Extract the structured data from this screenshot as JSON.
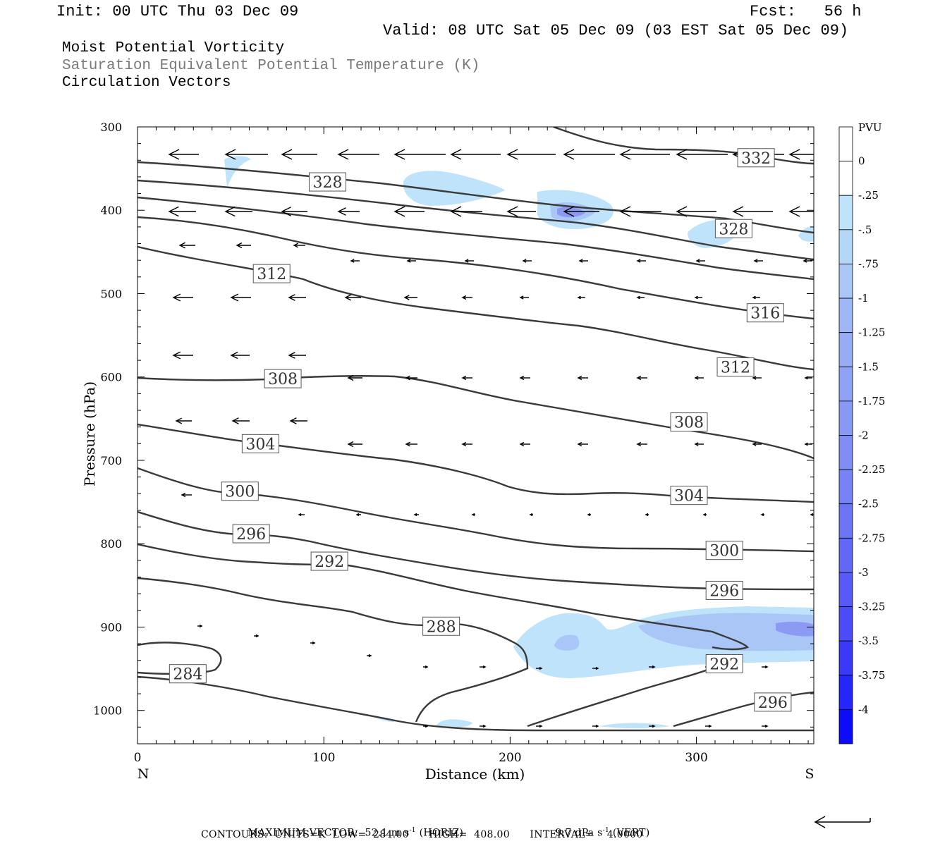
{
  "header": {
    "init": "Init: 00 UTC Thu 03 Dec 09",
    "fcst": "Fcst:   56 h",
    "valid": "Valid: 08 UTC Sat 05 Dec 09 (03 EST Sat 05 Dec 09)"
  },
  "titles": [
    "Moist Potential Vorticity",
    "Saturation Equivalent Potential Temperature (K)",
    "Circulation Vectors"
  ],
  "footer": {
    "max_vector_label": "MAXIMUM VECTOR:",
    "max_horiz": "52.1 m s",
    "horiz_tag": "(HORIZ)",
    "max_vert": "9.7 dPa s",
    "vert_tag": "(VERT)",
    "exp": "-1",
    "contours": "CONTOURS:  UNITS=K  LOW=  284.00      HIGH=  408.00      INTERVAL=    4.0000"
  },
  "colors": {
    "contour": "#3a3a3a",
    "pv_light": "#bfe3fa",
    "pv_mid": "#a9c6f7",
    "pv_dark": "#8c9af3"
  },
  "chart_data": {
    "type": "cross-section",
    "xlabel": "Distance (km)",
    "ylabel": "Pressure (hPa)",
    "xlim": [
      0,
      363
    ],
    "ylim": [
      1040,
      300
    ],
    "x_ticks": [
      0,
      100,
      200,
      300
    ],
    "y_ticks": [
      300,
      400,
      500,
      600,
      700,
      800,
      900,
      1000
    ],
    "x_end_labels": {
      "left": "N",
      "right": "S"
    },
    "colorbar": {
      "title": "PVU",
      "levels": [
        "0",
        "-.25",
        "-.5",
        "-.75",
        "-1",
        "-1.25",
        "-1.5",
        "-1.75",
        "-2",
        "-2.25",
        "-2.5",
        "-2.75",
        "-3",
        "-3.25",
        "-3.5",
        "-3.75",
        "-4"
      ],
      "colors": [
        "#ffffff",
        "#ffffff",
        "#bfe3fa",
        "#b4d7f8",
        "#a9c6f7",
        "#9fb7f7",
        "#98acf6",
        "#90a2f5",
        "#8898f5",
        "#7f8df5",
        "#7682f5",
        "#6c75f5",
        "#6268f6",
        "#575af6",
        "#4b4bf7",
        "#3a39f8",
        "#2526f9",
        "#0c0cfb"
      ]
    },
    "contour_labels": [
      {
        "value": "332",
        "x": 332,
        "p": 337
      },
      {
        "value": "328",
        "x": 102,
        "p": 366
      },
      {
        "value": "328",
        "x": 320,
        "p": 422
      },
      {
        "value": "312",
        "x": 72,
        "p": 476
      },
      {
        "value": "316",
        "x": 337,
        "p": 523
      },
      {
        "value": "312",
        "x": 321,
        "p": 588
      },
      {
        "value": "308",
        "x": 78,
        "p": 602
      },
      {
        "value": "308",
        "x": 296,
        "p": 654
      },
      {
        "value": "304",
        "x": 66,
        "p": 680
      },
      {
        "value": "304",
        "x": 296,
        "p": 742
      },
      {
        "value": "300",
        "x": 55,
        "p": 737
      },
      {
        "value": "300",
        "x": 315,
        "p": 808
      },
      {
        "value": "296",
        "x": 61,
        "p": 788
      },
      {
        "value": "296",
        "x": 315,
        "p": 856
      },
      {
        "value": "296",
        "x": 341,
        "p": 990
      },
      {
        "value": "292",
        "x": 103,
        "p": 821
      },
      {
        "value": "292",
        "x": 315,
        "p": 944
      },
      {
        "value": "288",
        "x": 163,
        "p": 899
      },
      {
        "value": "284",
        "x": 27,
        "p": 956
      }
    ]
  }
}
